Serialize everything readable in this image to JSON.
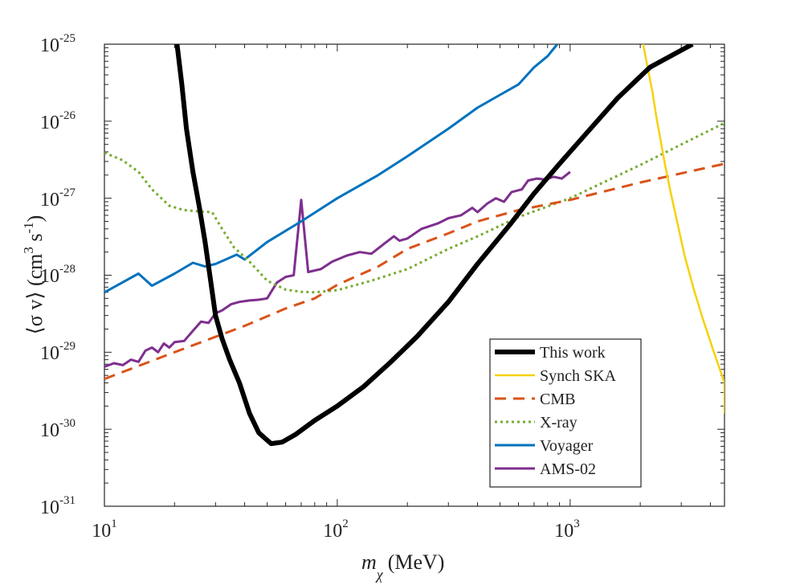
{
  "chart_data": {
    "type": "line",
    "title": "",
    "xscale": "log",
    "yscale": "log",
    "xlim": [
      10,
      4600
    ],
    "ylim": [
      1e-31,
      1e-25
    ],
    "xlabel": {
      "symbol": "m",
      "subscript": "χ",
      "unit": "(MeV)"
    },
    "ylabel": {
      "main": "⟨σ v⟩ (cm",
      "sup1": "3",
      "mid": " s",
      "sup2": "-1",
      "end": ")"
    },
    "x_ticks": [
      {
        "value": 10,
        "base": "10",
        "exp": "1"
      },
      {
        "value": 100,
        "base": "10",
        "exp": "2"
      },
      {
        "value": 1000,
        "base": "10",
        "exp": "3"
      }
    ],
    "y_ticks": [
      {
        "value": 1e-31,
        "base": "10",
        "exp": "-31"
      },
      {
        "value": 1e-30,
        "base": "10",
        "exp": "-30"
      },
      {
        "value": 1e-29,
        "base": "10",
        "exp": "-29"
      },
      {
        "value": 1e-28,
        "base": "10",
        "exp": "-28"
      },
      {
        "value": 1e-27,
        "base": "10",
        "exp": "-27"
      },
      {
        "value": 1e-26,
        "base": "10",
        "exp": "-26"
      },
      {
        "value": 1e-25,
        "base": "10",
        "exp": "-25"
      }
    ],
    "legend_position": "bottom-right",
    "series": [
      {
        "name": "This work",
        "color": "#000000",
        "width": 6,
        "dash": "",
        "points": [
          [
            20.5,
            1e-25
          ],
          [
            21.5,
            3e-26
          ],
          [
            22.5,
            8e-27
          ],
          [
            24,
            2.2e-27
          ],
          [
            25.5,
            8e-28
          ],
          [
            27,
            2.8e-28
          ],
          [
            28.5,
            9e-29
          ],
          [
            30,
            3e-29
          ],
          [
            32,
            1.5e-29
          ],
          [
            34.5,
            8e-30
          ],
          [
            38,
            4e-30
          ],
          [
            42,
            1.6e-30
          ],
          [
            46,
            9e-31
          ],
          [
            52,
            6.5e-31
          ],
          [
            58,
            6.8e-31
          ],
          [
            66,
            8.5e-31
          ],
          [
            80,
            1.3e-30
          ],
          [
            100,
            2e-30
          ],
          [
            130,
            3.6e-30
          ],
          [
            170,
            7.5e-30
          ],
          [
            220,
            1.6e-29
          ],
          [
            300,
            4.5e-29
          ],
          [
            400,
            1.4e-28
          ],
          [
            550,
            4.5e-28
          ],
          [
            700,
            1.15e-27
          ],
          [
            900,
            2.8e-27
          ],
          [
            1200,
            7.5e-27
          ],
          [
            1600,
            2e-26
          ],
          [
            2200,
            5e-26
          ],
          [
            3350,
            1e-25
          ]
        ]
      },
      {
        "name": "Synch SKA",
        "color": "#f7d10c",
        "width": 2.5,
        "dash": "",
        "points": [
          [
            2060,
            1e-25
          ],
          [
            2150,
            5e-26
          ],
          [
            2250,
            2.5e-26
          ],
          [
            2350,
            1.1e-26
          ],
          [
            2450,
            5.5e-27
          ],
          [
            2550,
            2.8e-27
          ],
          [
            2700,
            1.2e-27
          ],
          [
            2900,
            4.5e-28
          ],
          [
            3100,
            1.8e-28
          ],
          [
            3400,
            6.5e-29
          ],
          [
            3700,
            2.8e-29
          ],
          [
            4100,
            1.1e-29
          ],
          [
            4600,
            4e-30
          ],
          [
            4600,
            1.6e-30
          ]
        ]
      },
      {
        "name": "CMB",
        "color": "#d95319",
        "width": 3,
        "dash": "14,9",
        "points": [
          [
            10,
            4.5e-30
          ],
          [
            20,
            1e-29
          ],
          [
            40,
            2.2e-29
          ],
          [
            60,
            3.7e-29
          ],
          [
            80,
            5e-29
          ],
          [
            100,
            7.5e-29
          ],
          [
            150,
            1.3e-28
          ],
          [
            200,
            2.2e-28
          ],
          [
            300,
            3.5e-28
          ],
          [
            400,
            5e-28
          ],
          [
            600,
            7e-28
          ],
          [
            1000,
            9.5e-28
          ],
          [
            2000,
            1.6e-27
          ],
          [
            4600,
            2.8e-27
          ]
        ]
      },
      {
        "name": "X-ray",
        "color": "#77ac30",
        "width": 3,
        "dash": "3,4",
        "points": [
          [
            10,
            3.9e-27
          ],
          [
            12,
            3.1e-27
          ],
          [
            14,
            2.2e-27
          ],
          [
            16,
            1.3e-27
          ],
          [
            19,
            8e-28
          ],
          [
            22,
            7e-28
          ],
          [
            26,
            6.7e-28
          ],
          [
            29,
            6.6e-28
          ],
          [
            32,
            4e-28
          ],
          [
            36,
            2.3e-28
          ],
          [
            42,
            1.5e-28
          ],
          [
            50,
            8.5e-29
          ],
          [
            60,
            6.5e-29
          ],
          [
            70,
            6.1e-29
          ],
          [
            80,
            6e-29
          ],
          [
            100,
            6.4e-29
          ],
          [
            140,
            8.5e-29
          ],
          [
            200,
            1.2e-28
          ],
          [
            300,
            2.2e-28
          ],
          [
            400,
            3.2e-28
          ],
          [
            600,
            5.7e-28
          ],
          [
            1000,
            1e-27
          ],
          [
            2000,
            2.7e-27
          ],
          [
            4600,
            9.5e-27
          ]
        ]
      },
      {
        "name": "Voyager",
        "color": "#0072bd",
        "width": 3,
        "dash": "",
        "points": [
          [
            10,
            6e-29
          ],
          [
            14,
            1.05e-28
          ],
          [
            16,
            7.3e-29
          ],
          [
            20,
            1.05e-28
          ],
          [
            24,
            1.45e-28
          ],
          [
            27,
            1.3e-28
          ],
          [
            30,
            1.4e-28
          ],
          [
            37,
            1.85e-28
          ],
          [
            40,
            1.6e-28
          ],
          [
            50,
            2.7e-28
          ],
          [
            70,
            5e-28
          ],
          [
            100,
            1e-27
          ],
          [
            150,
            2e-27
          ],
          [
            200,
            3.5e-27
          ],
          [
            300,
            8e-27
          ],
          [
            400,
            1.5e-26
          ],
          [
            500,
            2.2e-26
          ],
          [
            600,
            3e-26
          ],
          [
            700,
            5e-26
          ],
          [
            800,
            7e-26
          ],
          [
            880,
            1e-25
          ]
        ]
      },
      {
        "name": "AMS-02",
        "color": "#7e2f8e",
        "width": 3,
        "dash": "",
        "points": [
          [
            10,
            6.5e-30
          ],
          [
            11,
            7.2e-30
          ],
          [
            12,
            6.8e-30
          ],
          [
            13,
            8e-30
          ],
          [
            14,
            7.5e-30
          ],
          [
            15,
            1.05e-29
          ],
          [
            16,
            1.15e-29
          ],
          [
            17,
            1e-29
          ],
          [
            18,
            1.3e-29
          ],
          [
            19,
            1.15e-29
          ],
          [
            20,
            1.35e-29
          ],
          [
            22,
            1.4e-29
          ],
          [
            24,
            1.9e-29
          ],
          [
            26,
            2.5e-29
          ],
          [
            28,
            2.4e-29
          ],
          [
            30,
            3.2e-29
          ],
          [
            32,
            3.5e-29
          ],
          [
            35,
            4.2e-29
          ],
          [
            38,
            4.5e-29
          ],
          [
            42,
            4.7e-29
          ],
          [
            46,
            4.8e-29
          ],
          [
            50,
            5e-29
          ],
          [
            55,
            8e-29
          ],
          [
            60,
            9.5e-29
          ],
          [
            65,
            1e-28
          ],
          [
            70,
            9.5e-28
          ],
          [
            75,
            1.1e-28
          ],
          [
            85,
            1.2e-28
          ],
          [
            95,
            1.5e-28
          ],
          [
            110,
            1.8e-28
          ],
          [
            125,
            2e-28
          ],
          [
            140,
            1.9e-28
          ],
          [
            160,
            2.6e-28
          ],
          [
            175,
            3.2e-28
          ],
          [
            185,
            2.8e-28
          ],
          [
            200,
            3e-28
          ],
          [
            230,
            4e-28
          ],
          [
            270,
            4.7e-28
          ],
          [
            300,
            5.5e-28
          ],
          [
            340,
            6e-28
          ],
          [
            380,
            7.5e-28
          ],
          [
            400,
            6.6e-28
          ],
          [
            440,
            8.5e-28
          ],
          [
            480,
            1e-27
          ],
          [
            520,
            9e-28
          ],
          [
            560,
            1.2e-27
          ],
          [
            620,
            1.3e-27
          ],
          [
            660,
            1.7e-27
          ],
          [
            720,
            1.8e-27
          ],
          [
            780,
            1.75e-27
          ],
          [
            850,
            1.9e-27
          ],
          [
            920,
            1.8e-27
          ],
          [
            1000,
            2.2e-27
          ]
        ]
      }
    ]
  }
}
